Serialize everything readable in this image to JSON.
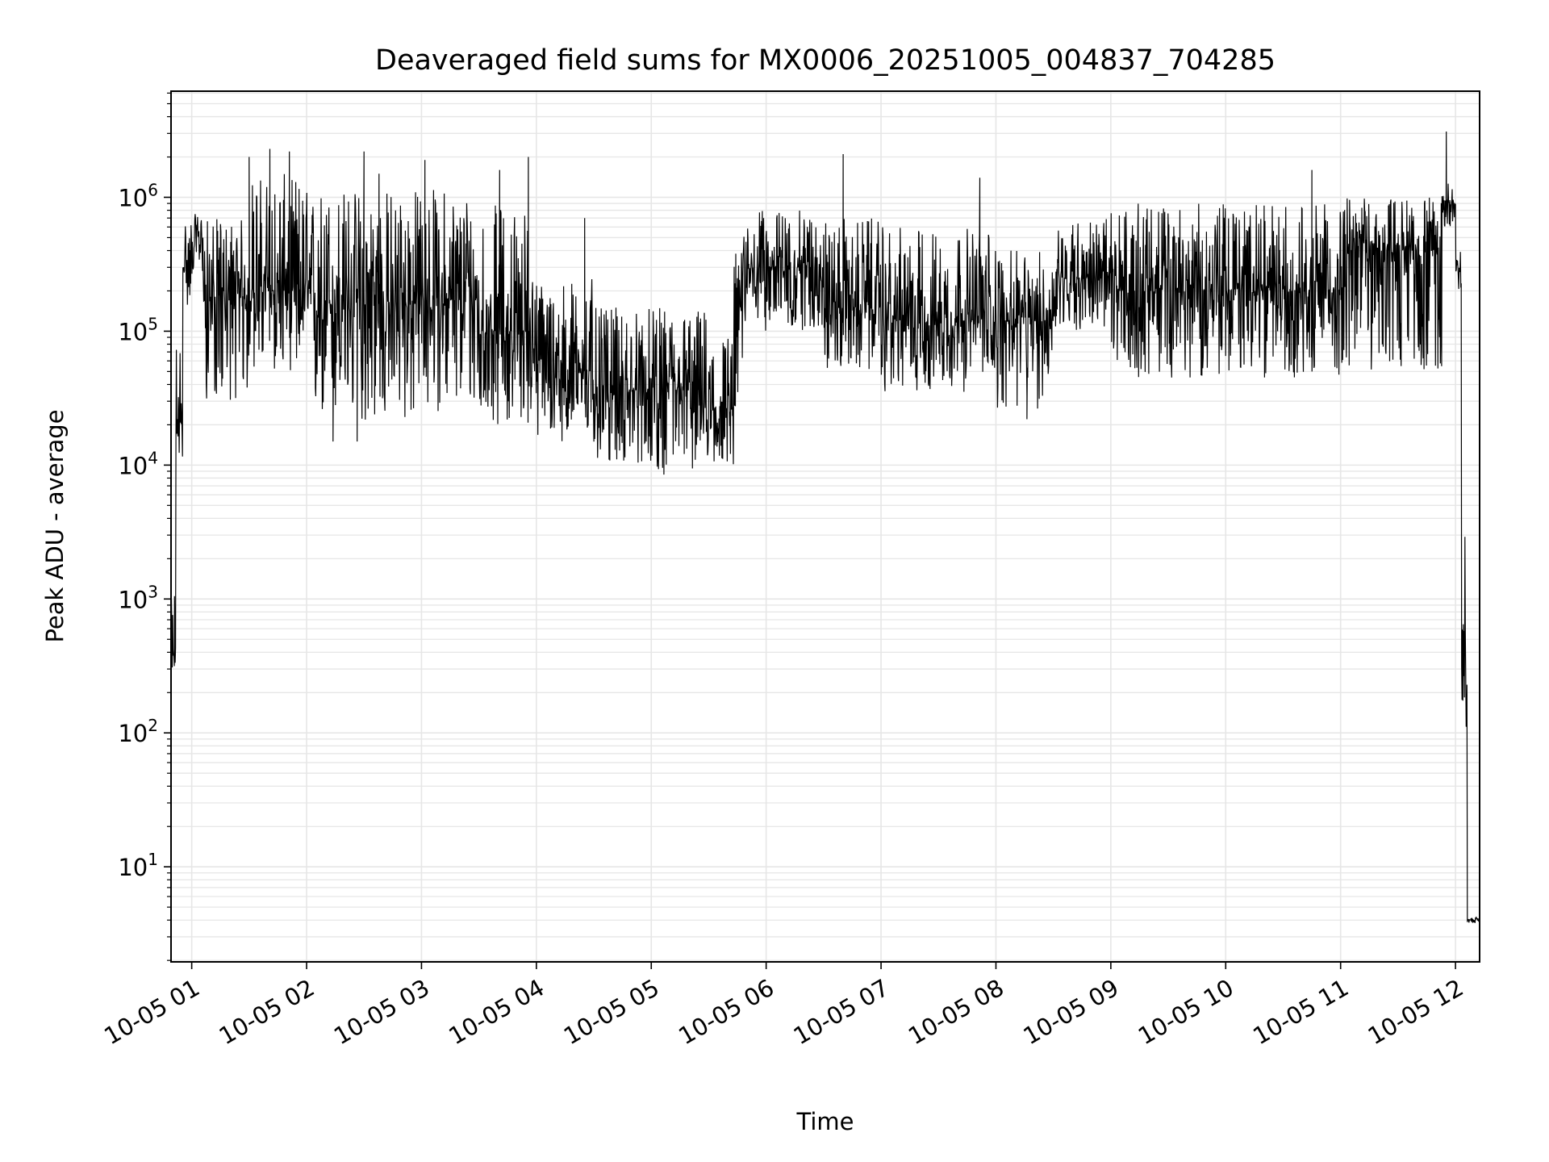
{
  "chart_data": {
    "type": "line",
    "title": "Deaveraged field sums for MX0006_20251005_004837_704285",
    "xlabel": "Time",
    "ylabel": "Peak ADU - average",
    "yscale": "log",
    "ylim": [
      1.95,
      6200000
    ],
    "xlim_hours": [
      0.82,
      12.21
    ],
    "grid": "major and minor",
    "line_color": "#000000",
    "grid_color": "#e6e6e6",
    "x_ticks": [
      {
        "hour": 1,
        "label": "10-05 01"
      },
      {
        "hour": 2,
        "label": "10-05 02"
      },
      {
        "hour": 3,
        "label": "10-05 03"
      },
      {
        "hour": 4,
        "label": "10-05 04"
      },
      {
        "hour": 5,
        "label": "10-05 05"
      },
      {
        "hour": 6,
        "label": "10-05 06"
      },
      {
        "hour": 7,
        "label": "10-05 07"
      },
      {
        "hour": 8,
        "label": "10-05 08"
      },
      {
        "hour": 9,
        "label": "10-05 09"
      },
      {
        "hour": 10,
        "label": "10-05 10"
      },
      {
        "hour": 11,
        "label": "10-05 11"
      },
      {
        "hour": 12,
        "label": "10-05 12"
      }
    ],
    "y_ticks": [
      {
        "exp": 1,
        "base": "10",
        "sup": "1"
      },
      {
        "exp": 2,
        "base": "10",
        "sup": "2"
      },
      {
        "exp": 3,
        "base": "10",
        "sup": "3"
      },
      {
        "exp": 4,
        "base": "10",
        "sup": "4"
      },
      {
        "exp": 5,
        "base": "10",
        "sup": "5"
      },
      {
        "exp": 6,
        "base": "10",
        "sup": "6"
      }
    ],
    "series_envelope": [
      {
        "t0": 0.82,
        "t1": 0.86,
        "typical": 350,
        "low": 300,
        "high": 1000
      },
      {
        "t0": 0.86,
        "t1": 0.92,
        "typical": 20000,
        "low": 11000,
        "high": 100000
      },
      {
        "t0": 0.92,
        "t1": 1.0,
        "typical": 300000,
        "low": 150000,
        "high": 750000
      },
      {
        "t0": 1.0,
        "t1": 1.1,
        "typical": 500000,
        "low": 250000,
        "high": 750000
      },
      {
        "t0": 1.1,
        "t1": 1.5,
        "typical": 180000,
        "low": 30000,
        "high": 700000
      },
      {
        "t0": 1.5,
        "t1": 2.0,
        "typical": 200000,
        "low": 50000,
        "high": 1500000
      },
      {
        "t0": 2.0,
        "t1": 3.0,
        "typical": 160000,
        "low": 20000,
        "high": 1200000
      },
      {
        "t0": 3.0,
        "t1": 3.5,
        "typical": 170000,
        "low": 25000,
        "high": 1200000
      },
      {
        "t0": 3.5,
        "t1": 4.0,
        "typical": 100000,
        "low": 20000,
        "high": 900000
      },
      {
        "t0": 4.0,
        "t1": 4.5,
        "typical": 50000,
        "low": 15000,
        "high": 250000
      },
      {
        "t0": 4.5,
        "t1": 5.0,
        "typical": 35000,
        "low": 10000,
        "high": 150000
      },
      {
        "t0": 5.0,
        "t1": 5.5,
        "typical": 35000,
        "low": 9000,
        "high": 150000
      },
      {
        "t0": 5.5,
        "t1": 5.72,
        "typical": 25000,
        "low": 10000,
        "high": 100000
      },
      {
        "t0": 5.72,
        "t1": 5.8,
        "typical": 150000,
        "low": 25000,
        "high": 400000
      },
      {
        "t0": 5.8,
        "t1": 6.5,
        "typical": 300000,
        "low": 100000,
        "high": 800000
      },
      {
        "t0": 6.5,
        "t1": 7.0,
        "typical": 150000,
        "low": 50000,
        "high": 700000
      },
      {
        "t0": 7.0,
        "t1": 8.0,
        "typical": 120000,
        "low": 35000,
        "high": 600000
      },
      {
        "t0": 8.0,
        "t1": 8.5,
        "typical": 120000,
        "low": 25000,
        "high": 400000
      },
      {
        "t0": 8.5,
        "t1": 9.0,
        "typical": 250000,
        "low": 100000,
        "high": 700000
      },
      {
        "t0": 9.0,
        "t1": 11.0,
        "typical": 200000,
        "low": 45000,
        "high": 900000
      },
      {
        "t0": 11.0,
        "t1": 11.88,
        "typical": 400000,
        "low": 50000,
        "high": 1000000
      },
      {
        "t0": 11.88,
        "t1": 12.0,
        "typical": 900000,
        "low": 600000,
        "high": 1300000
      },
      {
        "t0": 12.0,
        "t1": 12.05,
        "typical": 300000,
        "low": 200000,
        "high": 600000
      },
      {
        "t0": 12.05,
        "t1": 12.1,
        "typical": 300,
        "low": 100,
        "high": 3000
      },
      {
        "t0": 12.1,
        "t1": 12.21,
        "typical": 4,
        "low": 3.8,
        "high": 4.2
      }
    ],
    "spikes": [
      {
        "hour": 0.85,
        "value": 1050
      },
      {
        "hour": 1.5,
        "value": 2000000
      },
      {
        "hour": 1.68,
        "value": 2300000
      },
      {
        "hour": 1.85,
        "value": 2200000
      },
      {
        "hour": 2.5,
        "value": 2200000
      },
      {
        "hour": 2.63,
        "value": 1500000
      },
      {
        "hour": 3.03,
        "value": 1900000
      },
      {
        "hour": 3.68,
        "value": 1600000
      },
      {
        "hour": 3.93,
        "value": 2000000
      },
      {
        "hour": 4.42,
        "value": 700000
      },
      {
        "hour": 6.67,
        "value": 2100000
      },
      {
        "hour": 7.86,
        "value": 1400000
      },
      {
        "hour": 10.75,
        "value": 1600000
      },
      {
        "hour": 11.92,
        "value": 3100000
      },
      {
        "hour": 2.23,
        "value": 15000
      },
      {
        "hour": 2.44,
        "value": 15000
      },
      {
        "hour": 5.11,
        "value": 8500
      },
      {
        "hour": 8.27,
        "value": 22000
      }
    ]
  }
}
